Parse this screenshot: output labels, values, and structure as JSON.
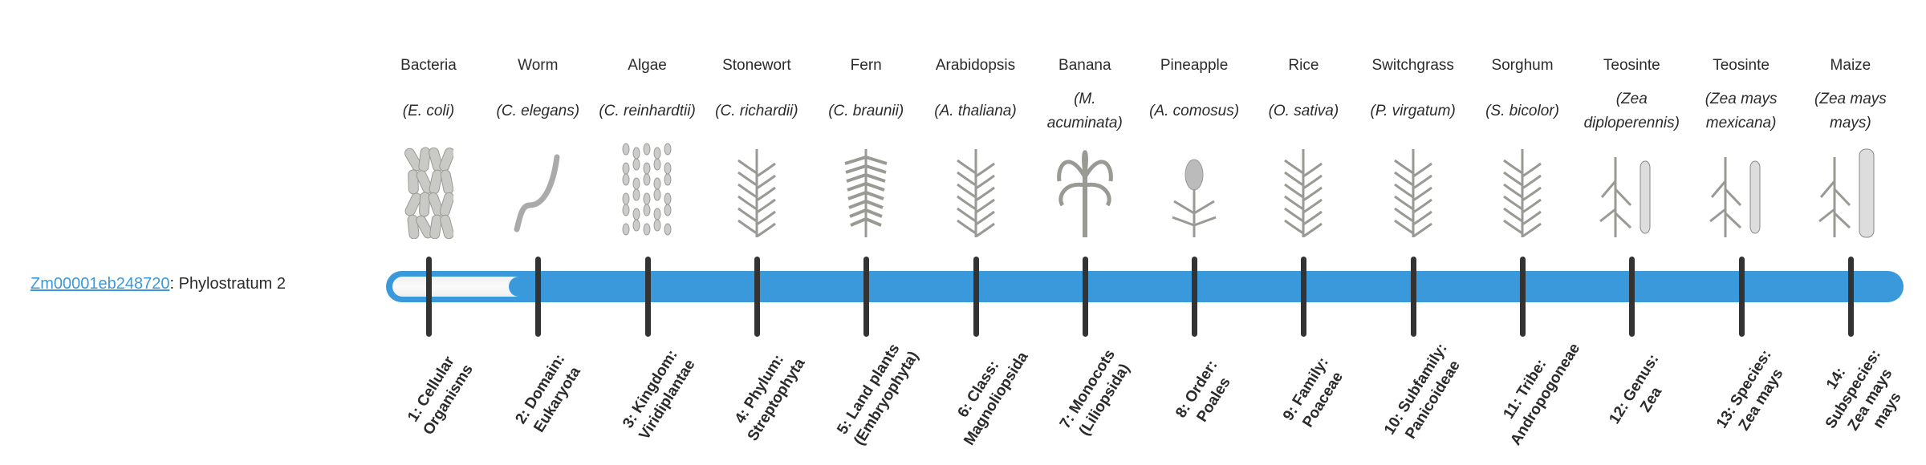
{
  "gene": {
    "id": "Zm00001eb248720",
    "suffix": ": Phylostratum 2"
  },
  "phylostratum": 2,
  "colors": {
    "bar": "#3a99db",
    "tick": "#333333",
    "link": "#3a99db"
  },
  "organisms": [
    {
      "name": "Bacteria",
      "species": "(E. coli)",
      "icon": "rod-bacteria"
    },
    {
      "name": "Worm",
      "species": "(C. elegans)",
      "icon": "worm"
    },
    {
      "name": "Algae",
      "species": "(C. reinhardtii)",
      "icon": "algae-cells"
    },
    {
      "name": "Stonewort",
      "species": "(C. richardii)",
      "icon": "stonewort"
    },
    {
      "name": "Fern",
      "species": "(C. braunii)",
      "icon": "fern"
    },
    {
      "name": "Arabidopsis",
      "species": "(A. thaliana)",
      "icon": "arabidopsis"
    },
    {
      "name": "Banana",
      "species": "(M. acuminata)",
      "icon": "banana-plant"
    },
    {
      "name": "Pineapple",
      "species": "(A. comosus)",
      "icon": "pineapple"
    },
    {
      "name": "Rice",
      "species": "(O. sativa)",
      "icon": "rice"
    },
    {
      "name": "Switchgrass",
      "species": "(P. virgatum)",
      "icon": "switchgrass"
    },
    {
      "name": "Sorghum",
      "species": "(S. bicolor)",
      "icon": "sorghum"
    },
    {
      "name": "Teosinte",
      "species": "(Zea diploperennis)",
      "icon": "teosinte"
    },
    {
      "name": "Teosinte",
      "species": "(Zea mays mexicana)",
      "icon": "teosinte"
    },
    {
      "name": "Maize",
      "species": "(Zea mays mays)",
      "icon": "maize"
    }
  ],
  "strata": [
    "1: Cellular Organisms",
    "2: Domain: Eukaryota",
    "3: Kingdom: Viridiplantae",
    "4: Phylum: Streptophyta",
    "5: Land plants (Embryophyta)",
    "6: Class: Magnoliopsida",
    "7: Monocots (Liliopsida)",
    "8: Order: Poales",
    "9: Family: Poaceae",
    "10: Subfamily: Panicoideae",
    "11: Tribe: Andropogoneae",
    "12: Genus: Zea",
    "13: Species: Zea mays",
    "14: Subspecies: Zea mays mays"
  ]
}
